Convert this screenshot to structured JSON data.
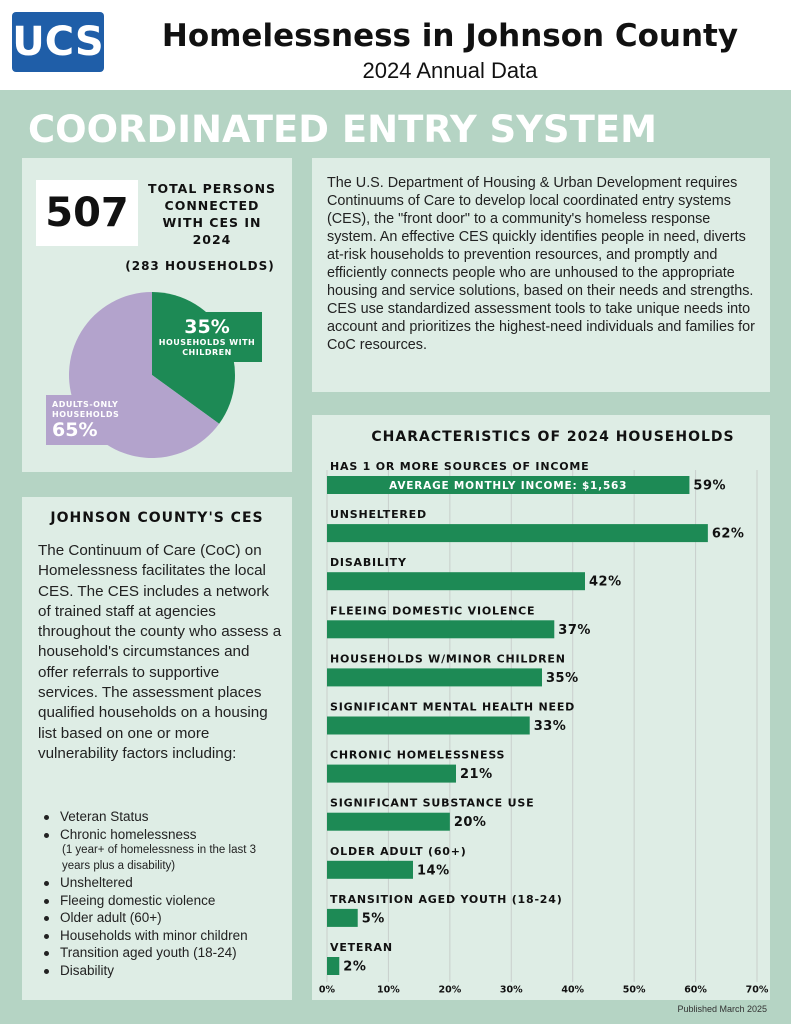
{
  "header": {
    "logo": "UCS",
    "title": "Homelessness in Johnson County",
    "subtitle": "2024 Annual Data"
  },
  "section_title": "COORDINATED ENTRY SYSTEM",
  "stat": {
    "value": 507,
    "label": "TOTAL PERSONS CONNECTED WITH CES IN 2024",
    "sublabel": "(283 HOUSEHOLDS)"
  },
  "intro": "The U.S. Department of Housing & Urban Development requires Continuums of Care to develop local coordinated entry systems (CES), the \"front door\" to a community's homeless response system. An effective CES quickly identifies people in need, diverts at-risk households to prevention resources, and promptly and efficiently connects people who are unhoused to the appropriate housing and service solutions, based on their needs and strengths. CES use standardized assessment tools to take unique needs into account and prioritizes the highest-need individuals and families for CoC resources.",
  "ces": {
    "heading": "JOHNSON COUNTY'S CES",
    "text": "The Continuum of Care (CoC) on Homelessness facilitates the local CES. The CES includes a network of trained staff at agencies throughout the county who assess a household's circumstances and offer referrals to supportive services. The assessment places qualified households on a housing list based on one or more vulnerability factors including:",
    "bullets": [
      {
        "text": "Veteran Status"
      },
      {
        "text": "Chronic homelessness",
        "note": "(1 year+ of homelessness in the last 3 years plus a disability)"
      },
      {
        "text": "Unsheltered"
      },
      {
        "text": "Fleeing domestic violence"
      },
      {
        "text": "Older adult (60+)"
      },
      {
        "text": "Households with minor children"
      },
      {
        "text": "Transition aged youth (18-24)"
      },
      {
        "text": "Disability"
      }
    ]
  },
  "footer": "Published March 2025",
  "chart_data": [
    {
      "type": "pie",
      "categories": [
        "HOUSEHOLDS WITH CHILDREN",
        "ADULTS-ONLY HOUSEHOLDS"
      ],
      "values": [
        35,
        65
      ],
      "value_labels": [
        "35%",
        "65%"
      ],
      "colors": [
        "#1d8a55",
        "#b3a3cc"
      ]
    },
    {
      "type": "hbar",
      "title": "CHARACTERISTICS OF 2024 HOUSEHOLDS",
      "categories": [
        "HAS 1 OR MORE SOURCES OF INCOME",
        "UNSHELTERED",
        "DISABILITY",
        "FLEEING DOMESTIC VIOLENCE",
        "HOUSEHOLDS W/MINOR CHILDREN",
        "SIGNIFICANT MENTAL HEALTH NEED",
        "CHRONIC HOMELESSNESS",
        "SIGNIFICANT SUBSTANCE USE",
        "OLDER ADULT (60+)",
        "TRANSITION AGED YOUTH (18-24)",
        "VETERAN"
      ],
      "values": [
        59,
        62,
        42,
        37,
        35,
        33,
        21,
        20,
        14,
        5,
        2
      ],
      "value_labels": [
        "59%",
        "62%",
        "42%",
        "37%",
        "35%",
        "33%",
        "21%",
        "20%",
        "14%",
        "5%",
        "2%"
      ],
      "annotation": "AVERAGE MONTHLY INCOME: $1,563",
      "color": "#1d8a55",
      "xlim": [
        0,
        70
      ],
      "xticks": [
        {
          "value": 0,
          "label": "0%"
        },
        {
          "value": 10,
          "label": "10%"
        },
        {
          "value": 20,
          "label": "20%"
        },
        {
          "value": 30,
          "label": "30%"
        },
        {
          "value": 40,
          "label": "40%"
        },
        {
          "value": 50,
          "label": "50%"
        },
        {
          "value": 60,
          "label": "60%"
        },
        {
          "value": 70,
          "label": "70%"
        }
      ],
      "grid": true
    }
  ]
}
